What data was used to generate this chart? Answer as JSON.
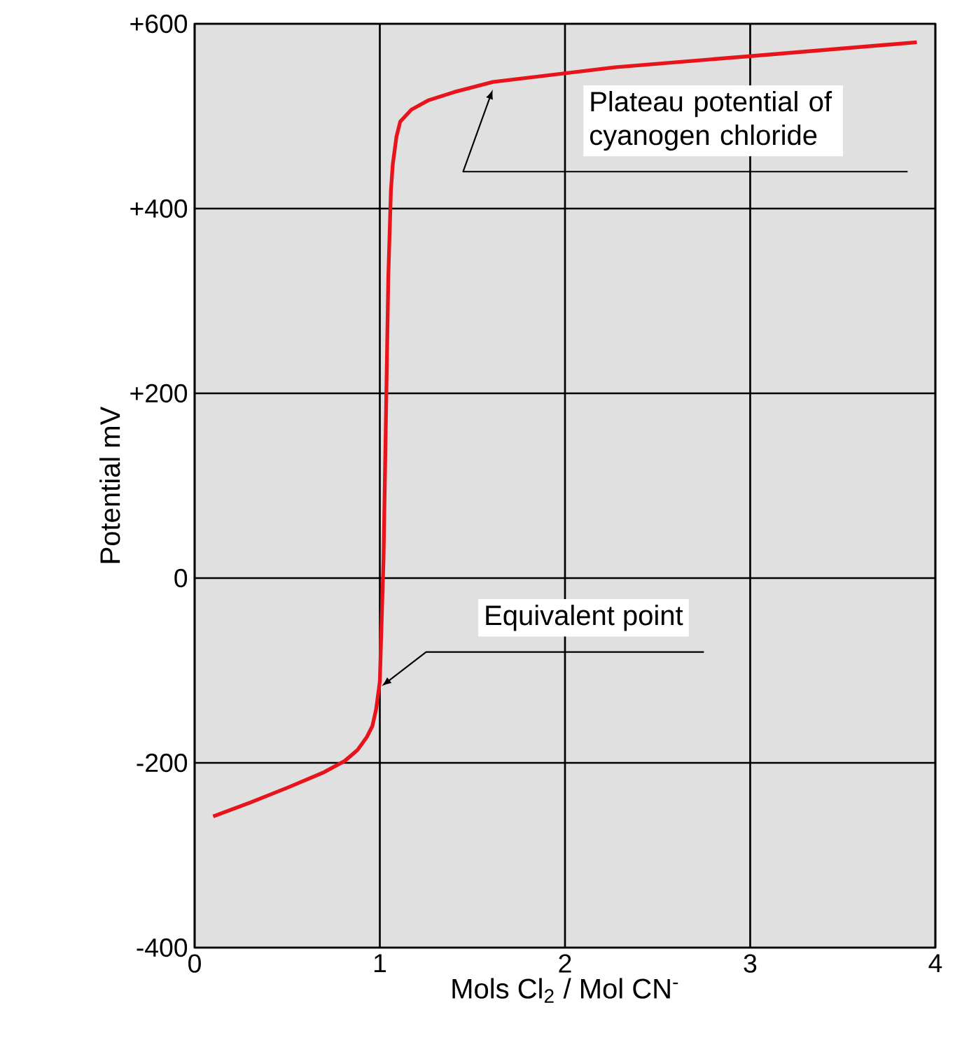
{
  "chart_data": {
    "type": "line",
    "xlabel": "Mols  Cl$_{2}$ / Mol  CN$^{-}$",
    "ylabel": "Potential mV",
    "xlim": [
      0,
      4
    ],
    "xticks": [
      0,
      1,
      2,
      3,
      4
    ],
    "ylim": [
      -400,
      600
    ],
    "yticks": [
      {
        "value": 600,
        "label": "+600"
      },
      {
        "value": 400,
        "label": "+400"
      },
      {
        "value": 200,
        "label": "+200"
      },
      0,
      -200,
      -400
    ],
    "grid": true,
    "marker": "none",
    "line_style": "solid",
    "series": [
      {
        "color": "#e8141b",
        "x": [
          0.1,
          0.3,
          0.5,
          0.7,
          0.81,
          0.88,
          0.93,
          0.96,
          0.98,
          1.0,
          1.02,
          1.046,
          1.06,
          1.07,
          1.09,
          1.11,
          1.17,
          1.26,
          1.4,
          1.61,
          2.27,
          3.0,
          3.9
        ],
        "values": [
          -258,
          -243,
          -227,
          -210,
          -198,
          -186,
          -172,
          -160,
          -142,
          -112,
          20,
          327,
          420,
          448,
          478,
          494,
          507,
          517,
          526,
          537,
          553,
          565,
          580
        ]
      }
    ],
    "annotations": [
      {
        "text": "Plateau potential of cyanogen chloride",
        "x": 1.61,
        "y": 529
      },
      {
        "text": "Equivalent point",
        "x": 1.01,
        "y": -117
      }
    ]
  }
}
